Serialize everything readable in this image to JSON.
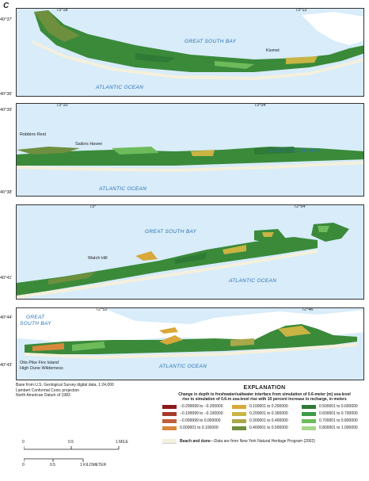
{
  "panel_letter": "C",
  "panels": [
    {
      "lon": [
        "73°18'",
        "73°12'"
      ],
      "lat": [
        "40°37'",
        "40°36'"
      ],
      "bay": "GREAT SOUTH BAY",
      "ocean": "ATLANTIC OCEAN",
      "places": [
        "Kismet"
      ]
    },
    {
      "lon": [
        "73°10'",
        "73°04'"
      ],
      "lat": [
        "40°39'",
        "40°38'"
      ],
      "bay": "GREAT SOUTH BAY",
      "ocean": "ATLANTIC OCEAN",
      "places": [
        "Robbins Rest",
        "Sailors Haven"
      ]
    },
    {
      "lon": [
        "73°",
        "72°54'"
      ],
      "lat": [
        "40°41'"
      ],
      "bay": "GREAT SOUTH BAY",
      "ocean": "ATLANTIC OCEAN",
      "places": [
        "Watch Hill"
      ]
    },
    {
      "lon": [
        "72°52'",
        "72°46'"
      ],
      "lat": [
        "40°44'",
        "40°43'"
      ],
      "bay_line1": "GREAT",
      "bay_line2": "SOUTH BAY",
      "ocean": "ATLANTIC OCEAN",
      "places": [
        "Otis Pike Fire Island",
        "High Dune Wilderness"
      ]
    }
  ],
  "credit": [
    "Base from U.S. Geological Survey digital data, 1:24,000",
    "Lambert Conformal Conic projection",
    "North American Datum of 1983"
  ],
  "legend": {
    "title": "EXPLANATION",
    "subtitle_line1": "Change in depth to freshwater/saltwater interface from simulation of 0.6-meter (m) sea-level",
    "subtitle_line2": "rise to simulation of 0.6-m sea-level rise with 10 percent increase in recharge, in meters",
    "items": [
      {
        "label": "−0.299999 to −0.200000",
        "color": "#8b1a1a"
      },
      {
        "label": "−0.199999 to −0.100000",
        "color": "#a83a2a"
      },
      {
        "label": "−0.099999 to 0.000000",
        "color": "#c0603a"
      },
      {
        "label": "0.000001 to 0.100000",
        "color": "#d8883a"
      },
      {
        "label": "0.100001 to 0.200000",
        "color": "#d9a83a"
      },
      {
        "label": "0.200001 to 0.300000",
        "color": "#c9b444"
      },
      {
        "label": "0.300001 to 0.400000",
        "color": "#a9a84a"
      },
      {
        "label": "0.400001 to 0.500000",
        "color": "#6e8f3e"
      },
      {
        "label": "0.500001 to 0.600000",
        "color": "#2f7a34"
      },
      {
        "label": "0.600001 to 0.700000",
        "color": "#3d9a45"
      },
      {
        "label": "0.700001 to 0.800000",
        "color": "#6dbb5a"
      },
      {
        "label": "0.800001 to 1.000000",
        "color": "#a6d68a"
      }
    ],
    "beach_label": "Beach and dune",
    "beach_source": "—Data are from New York Natural Heritage Program (2002)"
  },
  "scale": {
    "mile_ticks": [
      "0",
      "0.5",
      "1 MILE"
    ],
    "km_ticks": [
      "0",
      "0.5",
      "1 KILOMETER"
    ]
  }
}
